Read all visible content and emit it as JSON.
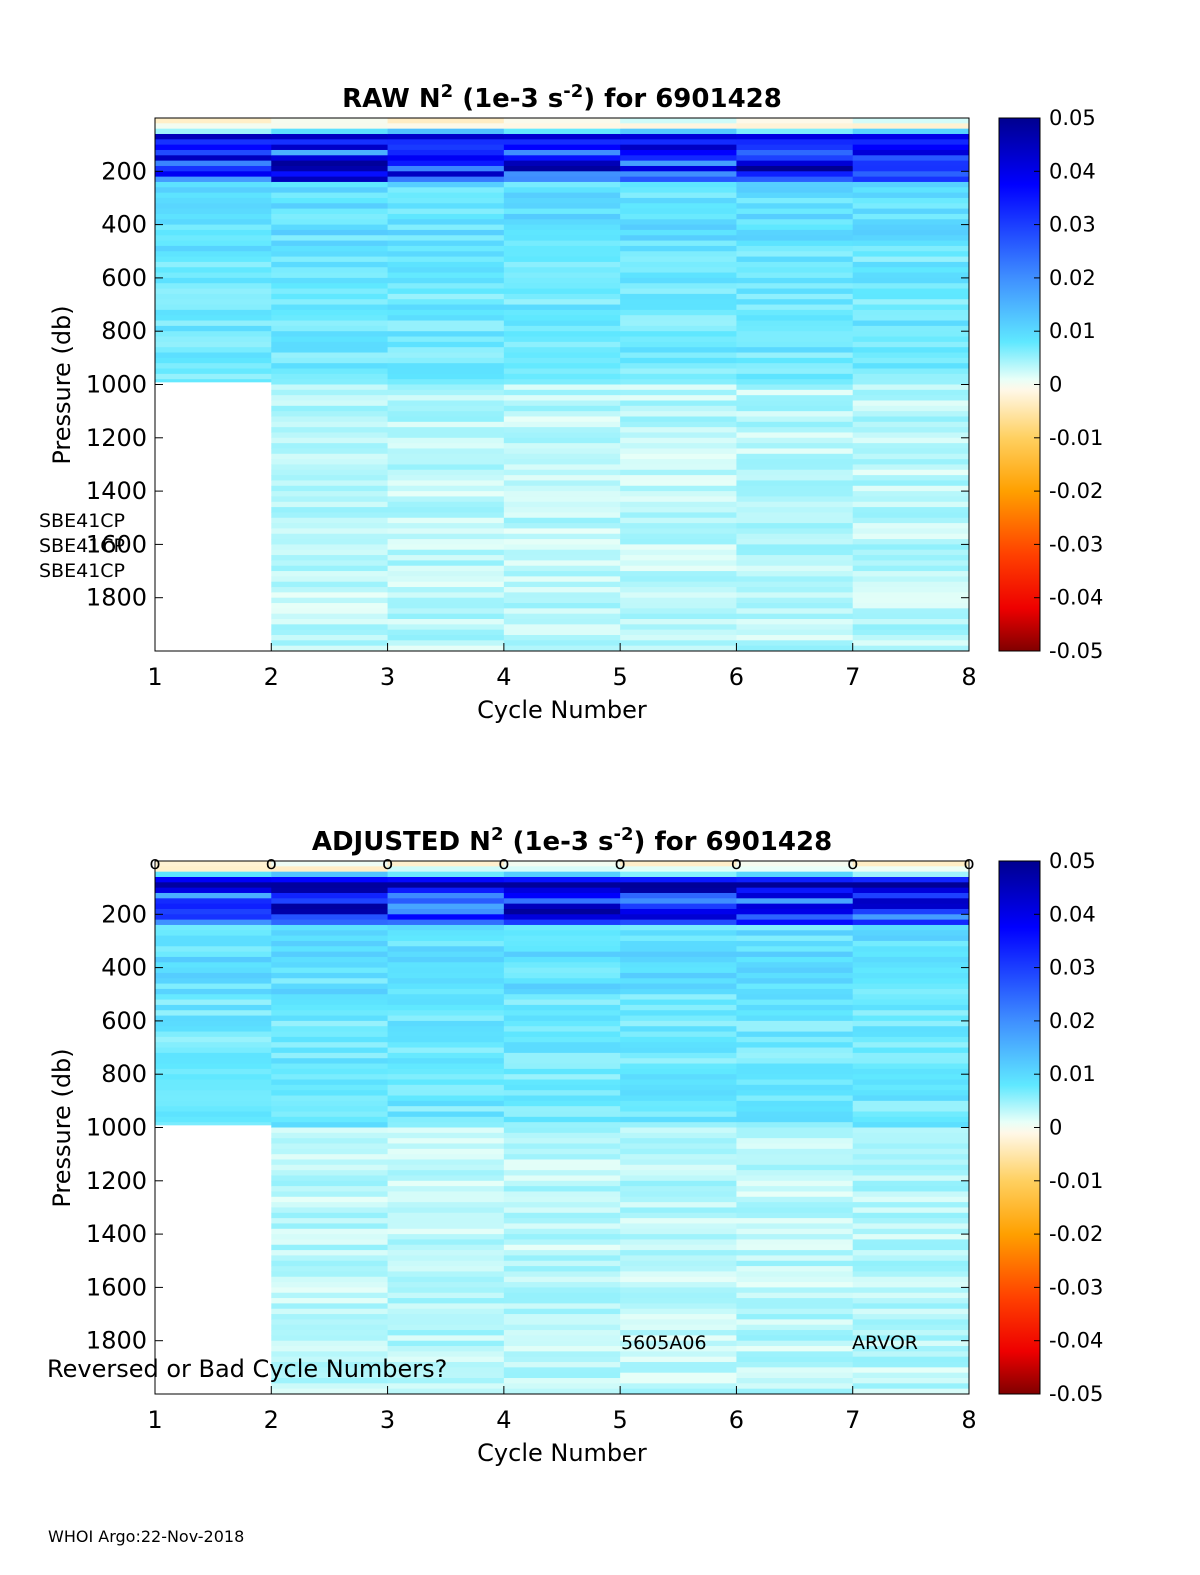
{
  "footer": "WHOI Argo:22-Nov-2018",
  "colorbar": {
    "ticks": [
      "0.05",
      "0.04",
      "0.03",
      "0.02",
      "0.01",
      "0",
      "-0.01",
      "-0.02",
      "-0.03",
      "-0.04",
      "-0.05"
    ],
    "range": [
      -0.05,
      0.05
    ]
  },
  "chart_data": [
    {
      "type": "heatmap",
      "title": "RAW N^2 (1e-3 s^-2) for 6901428",
      "title_parts": {
        "a": "RAW N",
        "sup1": "2",
        "b": " (1e-3 s",
        "sup2": "-2",
        "c": ") for 6901428"
      },
      "xlabel": "Cycle Number",
      "ylabel": "Pressure (db)",
      "xlim": [
        1,
        8
      ],
      "ylim": [
        2000,
        0
      ],
      "xticks": [
        "1",
        "2",
        "3",
        "4",
        "5",
        "6",
        "7",
        "8"
      ],
      "yticks": [
        "200",
        "400",
        "600",
        "800",
        "1000",
        "1200",
        "1400",
        "1600",
        "1800"
      ],
      "clim": [
        -0.05,
        0.05
      ],
      "cycles": [
        1,
        2,
        3,
        4,
        5,
        6,
        7
      ],
      "cycle_max_pressure": [
        990,
        2000,
        2000,
        2000,
        2000,
        2000,
        2000
      ],
      "annotations": [
        "SBE41CP",
        "SBE41CP",
        "SBE41CP"
      ]
    },
    {
      "type": "heatmap",
      "title": "ADJUSTED N^2 (1e-3 s^-2) for 6901428",
      "title_parts": {
        "a": "ADJUSTED N",
        "sup1": "2",
        "b": " (1e-3 s",
        "sup2": "-2",
        "c": ") for 6901428"
      },
      "xlabel": "Cycle Number",
      "ylabel": "Pressure (db)",
      "xlim": [
        1,
        8
      ],
      "ylim": [
        2000,
        0
      ],
      "xticks": [
        "1",
        "2",
        "3",
        "4",
        "5",
        "6",
        "7",
        "8"
      ],
      "yticks": [
        "200",
        "400",
        "600",
        "800",
        "1000",
        "1200",
        "1400",
        "1600",
        "1800"
      ],
      "clim": [
        -0.05,
        0.05
      ],
      "cycles": [
        1,
        2,
        3,
        4,
        5,
        6,
        7
      ],
      "cycle_max_pressure": [
        990,
        2000,
        2000,
        2000,
        2000,
        2000,
        2000
      ],
      "cycle_markers": [
        1,
        2,
        3,
        4,
        5,
        6,
        7,
        8
      ],
      "marker_symbol": "o",
      "annotations": [
        "5605A06",
        "ARVOR",
        "Reversed or Bad Cycle Numbers?"
      ]
    }
  ]
}
